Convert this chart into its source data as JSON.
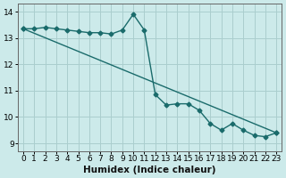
{
  "xlabel": "Humidex (Indice chaleur)",
  "bg_color": "#cceaea",
  "grid_color": "#aacece",
  "line_color": "#1a6b6b",
  "marker": "D",
  "markersize": 2.5,
  "linewidth": 1.0,
  "xlim": [
    -0.5,
    23.5
  ],
  "ylim": [
    8.7,
    14.3
  ],
  "xticks": [
    0,
    1,
    2,
    3,
    4,
    5,
    6,
    7,
    8,
    9,
    10,
    11,
    12,
    13,
    14,
    15,
    16,
    17,
    18,
    19,
    20,
    21,
    22,
    23
  ],
  "yticks": [
    9,
    10,
    11,
    12,
    13,
    14
  ],
  "line1_x": [
    0,
    1,
    2,
    3,
    4,
    5,
    6,
    7,
    8,
    9,
    10,
    11,
    12,
    13,
    14,
    15,
    16,
    17,
    18,
    19,
    20,
    21,
    22,
    23
  ],
  "line1_y": [
    13.35,
    13.35,
    13.4,
    13.35,
    13.3,
    13.25,
    13.2,
    13.2,
    13.15,
    13.3,
    13.9,
    13.3,
    10.85,
    10.45,
    10.5,
    10.5,
    10.25,
    9.75,
    9.5,
    9.75,
    9.5,
    9.3,
    9.25,
    9.4
  ],
  "line2_x": [
    0,
    23
  ],
  "line2_y": [
    13.35,
    9.4
  ],
  "tick_fontsize": 6.5,
  "xlabel_fontsize": 7.5
}
